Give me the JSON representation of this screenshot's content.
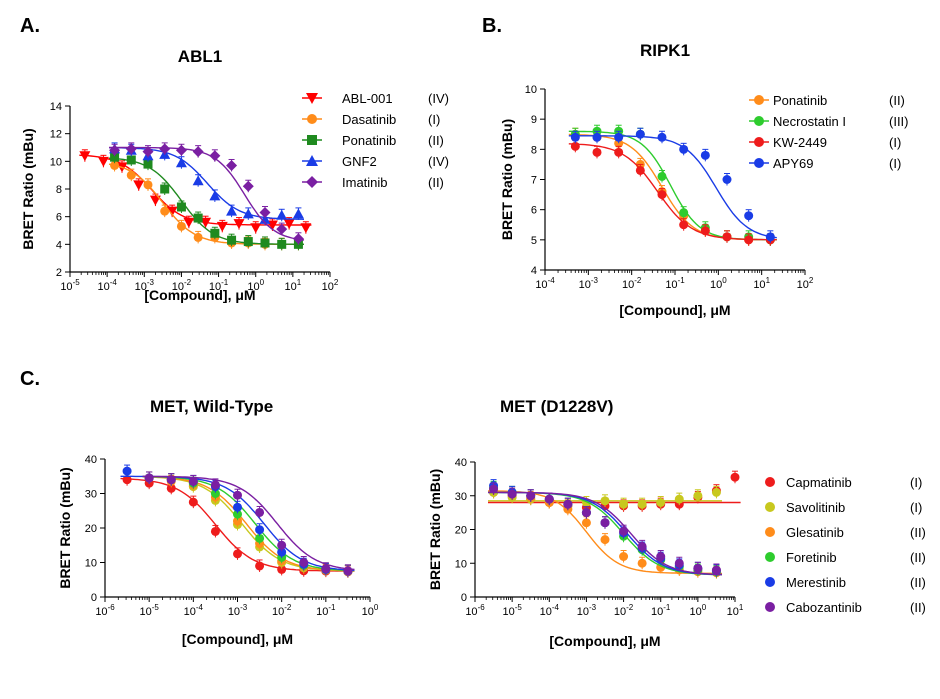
{
  "panels": {
    "a": "A.",
    "b": "B.",
    "c": "C."
  },
  "chart_data": [
    {
      "id": "abl1",
      "type": "scatter",
      "title": "ABL1",
      "xlabel": "[Compound], μM",
      "ylabel": "BRET Ratio (mBu)",
      "xscale": "log",
      "xlim": [
        -5,
        2
      ],
      "ylim": [
        2,
        14
      ],
      "yticks": [
        2,
        4,
        6,
        8,
        10,
        12,
        14
      ],
      "xticks": [
        -5,
        -4,
        -3,
        -2,
        -1,
        0,
        1,
        2
      ],
      "legend_position": "right",
      "series": [
        {
          "name": "ABL-001",
          "class": "(IV)",
          "color": "#ff0000",
          "marker": "triangle-down",
          "x": [
            -4.6,
            -4.1,
            -3.6,
            -3.15,
            -2.7,
            -2.25,
            -1.8,
            -1.35,
            -0.9,
            -0.45,
            0,
            0.45,
            0.9,
            1.35
          ],
          "y": [
            10.4,
            10.0,
            9.6,
            8.3,
            7.2,
            6.4,
            5.6,
            5.6,
            5.3,
            5.5,
            5.2,
            5.4,
            5.5,
            5.2
          ],
          "fit": {
            "top": 10.5,
            "bottom": 5.4,
            "logec50": -2.8,
            "hill": 1
          }
        },
        {
          "name": "Dasatinib",
          "class": "(I)",
          "color": "#ff8c1a",
          "marker": "circle",
          "x": [
            -3.8,
            -3.35,
            -2.9,
            -2.45,
            -2.0,
            -1.55,
            -1.1,
            -0.65,
            -0.2,
            0.25,
            0.7,
            1.15
          ],
          "y": [
            9.7,
            9.0,
            8.3,
            6.4,
            5.3,
            4.5,
            4.5,
            4.1,
            4.1,
            4.0,
            4.0,
            4.0
          ],
          "fit": {
            "top": 10.0,
            "bottom": 4.0,
            "logec50": -2.5,
            "hill": 1
          }
        },
        {
          "name": "Ponatinib",
          "class": "(II)",
          "color": "#1f8a1f",
          "marker": "square",
          "x": [
            -3.8,
            -3.35,
            -2.9,
            -2.45,
            -2.0,
            -1.55,
            -1.1,
            -0.65,
            -0.2,
            0.25,
            0.7,
            1.15
          ],
          "y": [
            10.3,
            10.1,
            9.8,
            8.0,
            6.7,
            5.9,
            4.8,
            4.3,
            4.2,
            4.1,
            4.0,
            4.0
          ],
          "fit": {
            "top": 10.3,
            "bottom": 4.0,
            "logec50": -2.0,
            "hill": 1
          }
        },
        {
          "name": "GNF2",
          "class": "(IV)",
          "color": "#1a3ce6",
          "marker": "triangle-up",
          "x": [
            -3.8,
            -3.35,
            -2.9,
            -2.45,
            -2.0,
            -1.55,
            -1.1,
            -0.65,
            -0.2,
            0.25,
            0.7,
            1.15
          ],
          "y": [
            10.9,
            10.8,
            10.4,
            10.5,
            9.9,
            8.6,
            7.5,
            6.4,
            6.2,
            5.8,
            6.1,
            6.2
          ],
          "fit": {
            "top": 11.0,
            "bottom": 5.8,
            "logec50": -1.3,
            "hill": 1
          }
        },
        {
          "name": "Imatinib",
          "class": "(II)",
          "color": "#7a1fa2",
          "marker": "diamond",
          "x": [
            -3.8,
            -3.35,
            -2.9,
            -2.45,
            -2.0,
            -1.55,
            -1.1,
            -0.65,
            -0.2,
            0.25,
            0.7,
            1.15
          ],
          "y": [
            10.8,
            10.9,
            10.7,
            10.9,
            10.8,
            10.7,
            10.4,
            9.7,
            8.2,
            6.3,
            5.1,
            4.4
          ],
          "fit": {
            "top": 11.0,
            "bottom": 4.2,
            "logec50": -0.3,
            "hill": 1.1
          }
        }
      ]
    },
    {
      "id": "ripk1",
      "type": "scatter",
      "title": "RIPK1",
      "xlabel": "[Compound], μM",
      "ylabel": "BRET Ratio (mBu)",
      "xscale": "log",
      "xlim": [
        -4,
        2
      ],
      "ylim": [
        4,
        10
      ],
      "yticks": [
        4,
        5,
        6,
        7,
        8,
        9,
        10
      ],
      "xticks": [
        -4,
        -3,
        -2,
        -1,
        0,
        1,
        2
      ],
      "legend_position": "top-right",
      "series": [
        {
          "name": "Ponatinib",
          "class": "(II)",
          "color": "#ff8c1a",
          "marker": "circle",
          "x": [
            -3.3,
            -2.8,
            -2.3,
            -1.8,
            -1.3,
            -0.8,
            -0.3,
            0.2,
            0.7,
            1.2
          ],
          "y": [
            8.5,
            8.4,
            8.2,
            7.5,
            6.6,
            5.8,
            5.3,
            5.1,
            5.0,
            5.0
          ],
          "fit": {
            "top": 8.5,
            "bottom": 5.0,
            "logec50": -1.3,
            "hill": 1.2
          }
        },
        {
          "name": "Necrostatin I",
          "class": "(III)",
          "color": "#2ecc2e",
          "marker": "circle",
          "x": [
            -3.3,
            -2.8,
            -2.3,
            -1.8,
            -1.3,
            -0.8,
            -0.3,
            0.2,
            0.7,
            1.2
          ],
          "y": [
            8.5,
            8.6,
            8.6,
            8.5,
            7.1,
            5.9,
            5.4,
            5.1,
            5.1,
            5.0
          ],
          "fit": {
            "top": 8.6,
            "bottom": 5.0,
            "logec50": -1.1,
            "hill": 1.3
          }
        },
        {
          "name": "KW-2449",
          "class": "(I)",
          "color": "#ee1c1c",
          "marker": "circle",
          "x": [
            -3.3,
            -2.8,
            -2.3,
            -1.8,
            -1.3,
            -0.8,
            -0.3,
            0.2,
            0.7,
            1.2
          ],
          "y": [
            8.1,
            7.9,
            7.9,
            7.3,
            6.5,
            5.5,
            5.3,
            5.1,
            5.0,
            5.0
          ],
          "fit": {
            "top": 8.2,
            "bottom": 5.0,
            "logec50": -1.4,
            "hill": 1.1
          }
        },
        {
          "name": "APY69",
          "class": "(I)",
          "color": "#1a3ce6",
          "marker": "circle",
          "x": [
            -3.3,
            -2.8,
            -2.3,
            -1.8,
            -1.3,
            -0.8,
            -0.3,
            0.2,
            0.7,
            1.2
          ],
          "y": [
            8.4,
            8.4,
            8.4,
            8.5,
            8.4,
            8.0,
            7.8,
            7.0,
            5.8,
            5.1
          ],
          "fit": {
            "top": 8.45,
            "bottom": 5.0,
            "logec50": -0.05,
            "hill": 1.2
          }
        }
      ]
    },
    {
      "id": "met-wt",
      "type": "scatter",
      "title": "MET, Wild-Type",
      "xlabel": "[Compound], μM",
      "ylabel": "BRET Ratio (mBu)",
      "xscale": "log",
      "xlim": [
        -6,
        0
      ],
      "ylim": [
        0,
        40
      ],
      "yticks": [
        0,
        10,
        20,
        30,
        40
      ],
      "xticks": [
        -6,
        -5,
        -4,
        -3,
        -2,
        -1,
        0
      ],
      "series": [
        {
          "name": "Capmatinib",
          "color": "#ee1c1c",
          "x": [
            -5.5,
            -5.0,
            -4.5,
            -4.0,
            -3.5,
            -3.0,
            -2.5,
            -2.0,
            -1.5,
            -1.0,
            -0.5
          ],
          "y": [
            34.0,
            33.0,
            31.5,
            27.5,
            19.0,
            12.5,
            9.0,
            8.0,
            7.6,
            7.5,
            7.3
          ],
          "fit": {
            "top": 34.5,
            "bottom": 7.5,
            "logec50": -3.5,
            "hill": 1
          }
        },
        {
          "name": "Savolitinib",
          "color": "#c8c81e",
          "x": [
            -5.0,
            -4.5,
            -4.0,
            -3.5,
            -3.0,
            -2.5,
            -2.0,
            -1.5,
            -1.0,
            -0.5
          ],
          "y": [
            34.5,
            34.0,
            32.0,
            28.0,
            21.0,
            14.5,
            10.0,
            8.5,
            7.8,
            7.4
          ],
          "fit": {
            "top": 35.0,
            "bottom": 7.5,
            "logec50": -2.9,
            "hill": 1
          }
        },
        {
          "name": "Glesatinib",
          "color": "#ff8c1a",
          "x": [
            -5.0,
            -4.5,
            -4.0,
            -3.5,
            -3.0,
            -2.5,
            -2.0,
            -1.5,
            -1.0,
            -0.5
          ],
          "y": [
            34.5,
            33.5,
            32.5,
            29.0,
            22.0,
            15.5,
            10.5,
            8.8,
            7.9,
            7.4
          ],
          "fit": {
            "top": 35.0,
            "bottom": 7.5,
            "logec50": -2.8,
            "hill": 1
          }
        },
        {
          "name": "Foretinib",
          "color": "#2ecc2e",
          "x": [
            -5.0,
            -4.5,
            -4.0,
            -3.5,
            -3.0,
            -2.5,
            -2.0,
            -1.5,
            -1.0,
            -0.5
          ],
          "y": [
            34.5,
            34.0,
            33.0,
            30.0,
            24.0,
            17.0,
            11.5,
            9.2,
            8.0,
            7.5
          ],
          "fit": {
            "top": 35.0,
            "bottom": 7.5,
            "logec50": -2.6,
            "hill": 1
          }
        },
        {
          "name": "Merestinib",
          "color": "#1a3ce6",
          "x": [
            -5.5,
            -5.0,
            -4.5,
            -4.0,
            -3.5,
            -3.0,
            -2.5,
            -2.0,
            -1.5,
            -1.0,
            -0.5
          ],
          "y": [
            36.5,
            34.5,
            34.0,
            33.5,
            32.0,
            26.0,
            19.5,
            13.0,
            9.5,
            8.0,
            7.5
          ],
          "fit": {
            "top": 35.0,
            "bottom": 7.5,
            "logec50": -2.4,
            "hill": 1
          }
        },
        {
          "name": "Cabozantinib",
          "color": "#7a1fa2",
          "x": [
            -5.0,
            -4.5,
            -4.0,
            -3.5,
            -3.0,
            -2.5,
            -2.0,
            -1.5,
            -1.0,
            -0.5
          ],
          "y": [
            34.5,
            34.0,
            33.5,
            32.5,
            29.5,
            24.5,
            15.0,
            10.0,
            8.2,
            7.6
          ],
          "fit": {
            "top": 35.0,
            "bottom": 7.5,
            "logec50": -2.1,
            "hill": 1
          }
        }
      ]
    },
    {
      "id": "met-d1228v",
      "type": "scatter",
      "title": "MET (D1228V)",
      "xlabel": "[Compound], μM",
      "ylabel": "BRET Ratio (mBu)",
      "xscale": "log",
      "xlim": [
        -6,
        1
      ],
      "ylim": [
        0,
        40
      ],
      "yticks": [
        0,
        10,
        20,
        30,
        40
      ],
      "xticks": [
        -6,
        -5,
        -4,
        -3,
        -2,
        -1,
        0,
        1
      ],
      "legend_position": "right",
      "series": [
        {
          "name": "Capmatinib",
          "class": "(I)",
          "color": "#ee1c1c",
          "marker": "circle",
          "x": [
            -5.5,
            -5.0,
            -4.5,
            -4.0,
            -3.5,
            -3.0,
            -2.5,
            -2.0,
            -1.5,
            -1.0,
            -0.5,
            0.0,
            0.5,
            1.0
          ],
          "y": [
            31.0,
            30.0,
            29.0,
            28.0,
            27.0,
            26.5,
            27.0,
            27.0,
            27.0,
            27.5,
            27.5,
            29.5,
            31.5,
            35.5
          ],
          "fit": {
            "top": 28.0,
            "bottom": 28.0,
            "logec50": -2.0,
            "hill": 1
          }
        },
        {
          "name": "Savolitinib",
          "class": "(I)",
          "color": "#c8c81e",
          "marker": "circle",
          "x": [
            -5.5,
            -5.0,
            -4.5,
            -4.0,
            -3.5,
            -3.0,
            -2.5,
            -2.0,
            -1.5,
            -1.0,
            -0.5,
            0.0,
            0.5
          ],
          "y": [
            31.0,
            29.5,
            29.0,
            28.0,
            27.0,
            28.0,
            28.5,
            27.5,
            27.5,
            28.0,
            29.0,
            30.0,
            31.0
          ],
          "fit": {
            "top": 28.5,
            "bottom": 28.5,
            "logec50": -2.0,
            "hill": 1
          }
        },
        {
          "name": "Glesatinib",
          "class": "(II)",
          "color": "#ff8c1a",
          "marker": "circle",
          "x": [
            -5.5,
            -5.0,
            -4.5,
            -4.0,
            -3.5,
            -3.0,
            -2.5,
            -2.0,
            -1.5,
            -1.0,
            -0.5,
            0.0,
            0.5
          ],
          "y": [
            32.0,
            30.5,
            29.5,
            28.0,
            26.0,
            22.0,
            17.0,
            12.0,
            10.0,
            8.8,
            8.0,
            7.5,
            7.2
          ],
          "fit": {
            "top": 31.5,
            "bottom": 7.0,
            "logec50": -3.0,
            "hill": 1
          }
        },
        {
          "name": "Foretinib",
          "class": "(II)",
          "color": "#2ecc2e",
          "marker": "circle",
          "x": [
            -5.5,
            -5.0,
            -4.5,
            -4.0,
            -3.5,
            -3.0,
            -2.5,
            -2.0,
            -1.5,
            -1.0,
            -0.5,
            0.0,
            0.5
          ],
          "y": [
            32.5,
            31.0,
            30.0,
            29.0,
            27.5,
            25.0,
            22.0,
            18.0,
            14.0,
            11.0,
            9.0,
            8.0,
            7.5
          ],
          "fit": {
            "top": 31.0,
            "bottom": 6.5,
            "logec50": -2.0,
            "hill": 0.9
          }
        },
        {
          "name": "Merestinib",
          "class": "(II)",
          "color": "#1a3ce6",
          "marker": "circle",
          "x": [
            -5.5,
            -5.0,
            -4.5,
            -4.0,
            -3.5,
            -3.0,
            -2.5,
            -2.0,
            -1.5,
            -1.0,
            -0.5,
            0.0,
            0.5
          ],
          "y": [
            33.0,
            31.0,
            30.0,
            29.0,
            27.5,
            25.0,
            22.0,
            19.0,
            14.5,
            11.5,
            9.5,
            8.5,
            7.8
          ],
          "fit": {
            "top": 31.0,
            "bottom": 6.5,
            "logec50": -1.9,
            "hill": 0.9
          }
        },
        {
          "name": "Cabozantinib",
          "class": "(II)",
          "color": "#7a1fa2",
          "marker": "circle",
          "x": [
            -5.5,
            -5.0,
            -4.5,
            -4.0,
            -3.5,
            -3.0,
            -2.5,
            -2.0,
            -1.5,
            -1.0,
            -0.5,
            0.0,
            0.5
          ],
          "y": [
            32.0,
            30.5,
            30.0,
            29.0,
            27.5,
            25.0,
            22.0,
            19.5,
            15.0,
            12.0,
            10.0,
            8.5,
            8.0
          ],
          "fit": {
            "top": 31.0,
            "bottom": 6.5,
            "logec50": -1.8,
            "hill": 0.9
          }
        }
      ]
    }
  ]
}
